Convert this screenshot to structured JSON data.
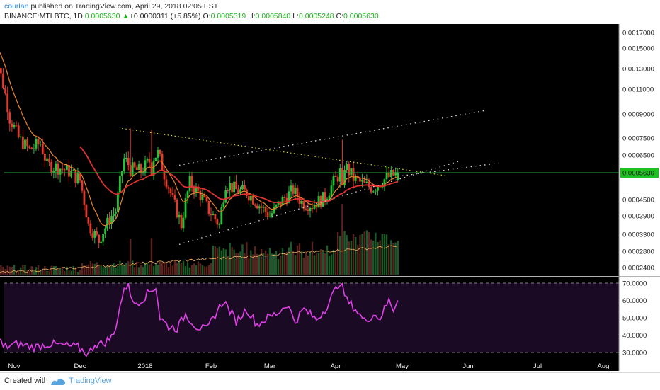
{
  "header": {
    "author": "courlan",
    "published_text": " published on TradingView.com, April 29, 2018 02:05 EST",
    "symbol": "BINANCE:MTLBTC, 1D ",
    "last_price": "0.0005630",
    "change_arrow": "▲",
    "change": "+0.0000311 (+5.85%)",
    "o_label": "O:",
    "o_value": "0.0005319",
    "h_label": "H:",
    "h_value": "0.0005840",
    "l_label": "L:",
    "l_value": "0.0005248",
    "c_label": "C:",
    "c_value": "0.0005630"
  },
  "footer": {
    "created_with": "Created with",
    "brand": "TradingView"
  },
  "colors": {
    "background": "#000000",
    "up": "#27c23a",
    "down": "#e23b2e",
    "ema_slow": "#e03232",
    "ema_fast": "#e8832a",
    "rsi": "#e040e8",
    "trendline_white": "#dddddd",
    "trendline_yellow": "#e6e626",
    "price_line": "#26a63a",
    "price_badge": "#21c021",
    "rsi_band_fill": "#1b0a24"
  },
  "chart_data": {
    "type": "candlestick",
    "price_axis_ticks": [
      "0.0017000",
      "0.0015000",
      "0.0013000",
      "0.0011000",
      "0.0009000",
      "0.0007500",
      "0.0006500",
      "0.0005630",
      "0.0004500",
      "0.0003900",
      "0.0003300",
      "0.0002800",
      "0.0002400"
    ],
    "last_price_label": "0.0005630",
    "x_tick_labels": [
      "Nov",
      "Dec",
      "2018",
      "Feb",
      "Mar",
      "Apr",
      "May",
      "Jun",
      "Jul",
      "Aug"
    ],
    "x_tick_dates": [
      "2017-11-01",
      "2017-12-01",
      "2018-01-01",
      "2018-02-01",
      "2018-03-01",
      "2018-04-01",
      "2018-05-01",
      "2018-06-01",
      "2018-07-01",
      "2018-08-01"
    ],
    "ema_slow_start": "2017-12-01",
    "rsi_axis_ticks": [
      "70.0000",
      "60.0000",
      "50.0000",
      "40.0000",
      "30.0000"
    ],
    "rsi_levels": [
      70,
      30
    ],
    "anchors": [
      [
        "2017-10-22",
        0.00158
      ],
      [
        "2017-10-25",
        0.00132
      ],
      [
        "2017-10-30",
        0.00088
      ],
      [
        "2017-11-03",
        0.00075
      ],
      [
        "2017-11-08",
        0.00068
      ],
      [
        "2017-11-13",
        0.00072
      ],
      [
        "2017-11-16",
        0.0006
      ],
      [
        "2017-11-21",
        0.00059
      ],
      [
        "2017-11-26",
        0.00057
      ],
      [
        "2017-12-01",
        0.00053
      ],
      [
        "2017-12-05",
        0.00036
      ],
      [
        "2017-12-10",
        0.00031
      ],
      [
        "2017-12-15",
        0.00038
      ],
      [
        "2017-12-18",
        0.00041
      ],
      [
        "2017-12-22",
        0.00063
      ],
      [
        "2017-12-26",
        0.00058
      ],
      [
        "2017-12-30",
        0.00057
      ],
      [
        "2018-01-03",
        0.00062
      ],
      [
        "2018-01-07",
        0.00066
      ],
      [
        "2018-01-10",
        0.00056
      ],
      [
        "2018-01-14",
        0.00045
      ],
      [
        "2018-01-18",
        0.00036
      ],
      [
        "2018-01-22",
        0.00052
      ],
      [
        "2018-01-27",
        0.00047
      ],
      [
        "2018-01-31",
        0.00041
      ],
      [
        "2018-02-05",
        0.00036
      ],
      [
        "2018-02-08",
        0.00052
      ],
      [
        "2018-02-13",
        0.00049
      ],
      [
        "2018-02-18",
        0.00048
      ],
      [
        "2018-02-24",
        0.00043
      ],
      [
        "2018-03-01",
        0.00039
      ],
      [
        "2018-03-06",
        0.00044
      ],
      [
        "2018-03-12",
        0.00049
      ],
      [
        "2018-03-16",
        0.00044
      ],
      [
        "2018-03-21",
        0.00043
      ],
      [
        "2018-03-27",
        0.00046
      ],
      [
        "2018-03-31",
        0.00052
      ],
      [
        "2018-04-02",
        0.00055
      ],
      [
        "2018-04-05",
        0.0006
      ],
      [
        "2018-04-09",
        0.00054
      ],
      [
        "2018-04-14",
        0.00051
      ],
      [
        "2018-04-18",
        0.0005
      ],
      [
        "2018-04-22",
        0.00053
      ],
      [
        "2018-04-26",
        0.00055
      ],
      [
        "2018-04-29",
        0.00056
      ]
    ],
    "spikes": [
      [
        "2017-12-25",
        0.00081,
        0.00055
      ],
      [
        "2018-01-04",
        0.0008,
        0.00055
      ],
      [
        "2018-04-04",
        0.00074,
        0.00051
      ]
    ],
    "rsi": [
      [
        "2017-10-22",
        47
      ],
      [
        "2017-10-27",
        33
      ],
      [
        "2017-11-03",
        35
      ],
      [
        "2017-11-10",
        33
      ],
      [
        "2017-11-17",
        35
      ],
      [
        "2017-11-24",
        34
      ],
      [
        "2017-11-30",
        33
      ],
      [
        "2017-12-05",
        29
      ],
      [
        "2017-12-08",
        35
      ],
      [
        "2017-12-12",
        35
      ],
      [
        "2017-12-17",
        40
      ],
      [
        "2017-12-21",
        62
      ],
      [
        "2017-12-24",
        71
      ],
      [
        "2017-12-26",
        58
      ],
      [
        "2017-12-30",
        60
      ],
      [
        "2018-01-03",
        65
      ],
      [
        "2018-01-06",
        68
      ],
      [
        "2018-01-08",
        50
      ],
      [
        "2018-01-12",
        45
      ],
      [
        "2018-01-16",
        44
      ],
      [
        "2018-01-20",
        52
      ],
      [
        "2018-01-25",
        45
      ],
      [
        "2018-01-30",
        43
      ],
      [
        "2018-02-03",
        52
      ],
      [
        "2018-02-07",
        60
      ],
      [
        "2018-02-13",
        48
      ],
      [
        "2018-02-18",
        55
      ],
      [
        "2018-02-23",
        46
      ],
      [
        "2018-02-28",
        50
      ],
      [
        "2018-03-05",
        53
      ],
      [
        "2018-03-09",
        58
      ],
      [
        "2018-03-13",
        48
      ],
      [
        "2018-03-17",
        55
      ],
      [
        "2018-03-23",
        49
      ],
      [
        "2018-03-27",
        55
      ],
      [
        "2018-03-31",
        64
      ],
      [
        "2018-04-03",
        71
      ],
      [
        "2018-04-06",
        60
      ],
      [
        "2018-04-10",
        55
      ],
      [
        "2018-04-14",
        48
      ],
      [
        "2018-04-18",
        52
      ],
      [
        "2018-04-21",
        50
      ],
      [
        "2018-04-25",
        60
      ],
      [
        "2018-04-27",
        55
      ],
      [
        "2018-04-29",
        60
      ]
    ],
    "trendlines_white": [
      [
        [
          "2018-01-17",
          0.0003
        ],
        [
          "2018-05-28",
          0.00062
        ]
      ],
      [
        [
          "2018-01-17",
          0.0006
        ],
        [
          "2018-06-09",
          0.00093
        ]
      ],
      [
        [
          "2018-05-01",
          0.00055
        ],
        [
          "2018-06-14",
          0.00061
        ]
      ]
    ],
    "trendline_yellow": [
      [
        "2017-12-21",
        0.00081
      ],
      [
        "2018-05-22",
        0.00055
      ]
    ]
  }
}
